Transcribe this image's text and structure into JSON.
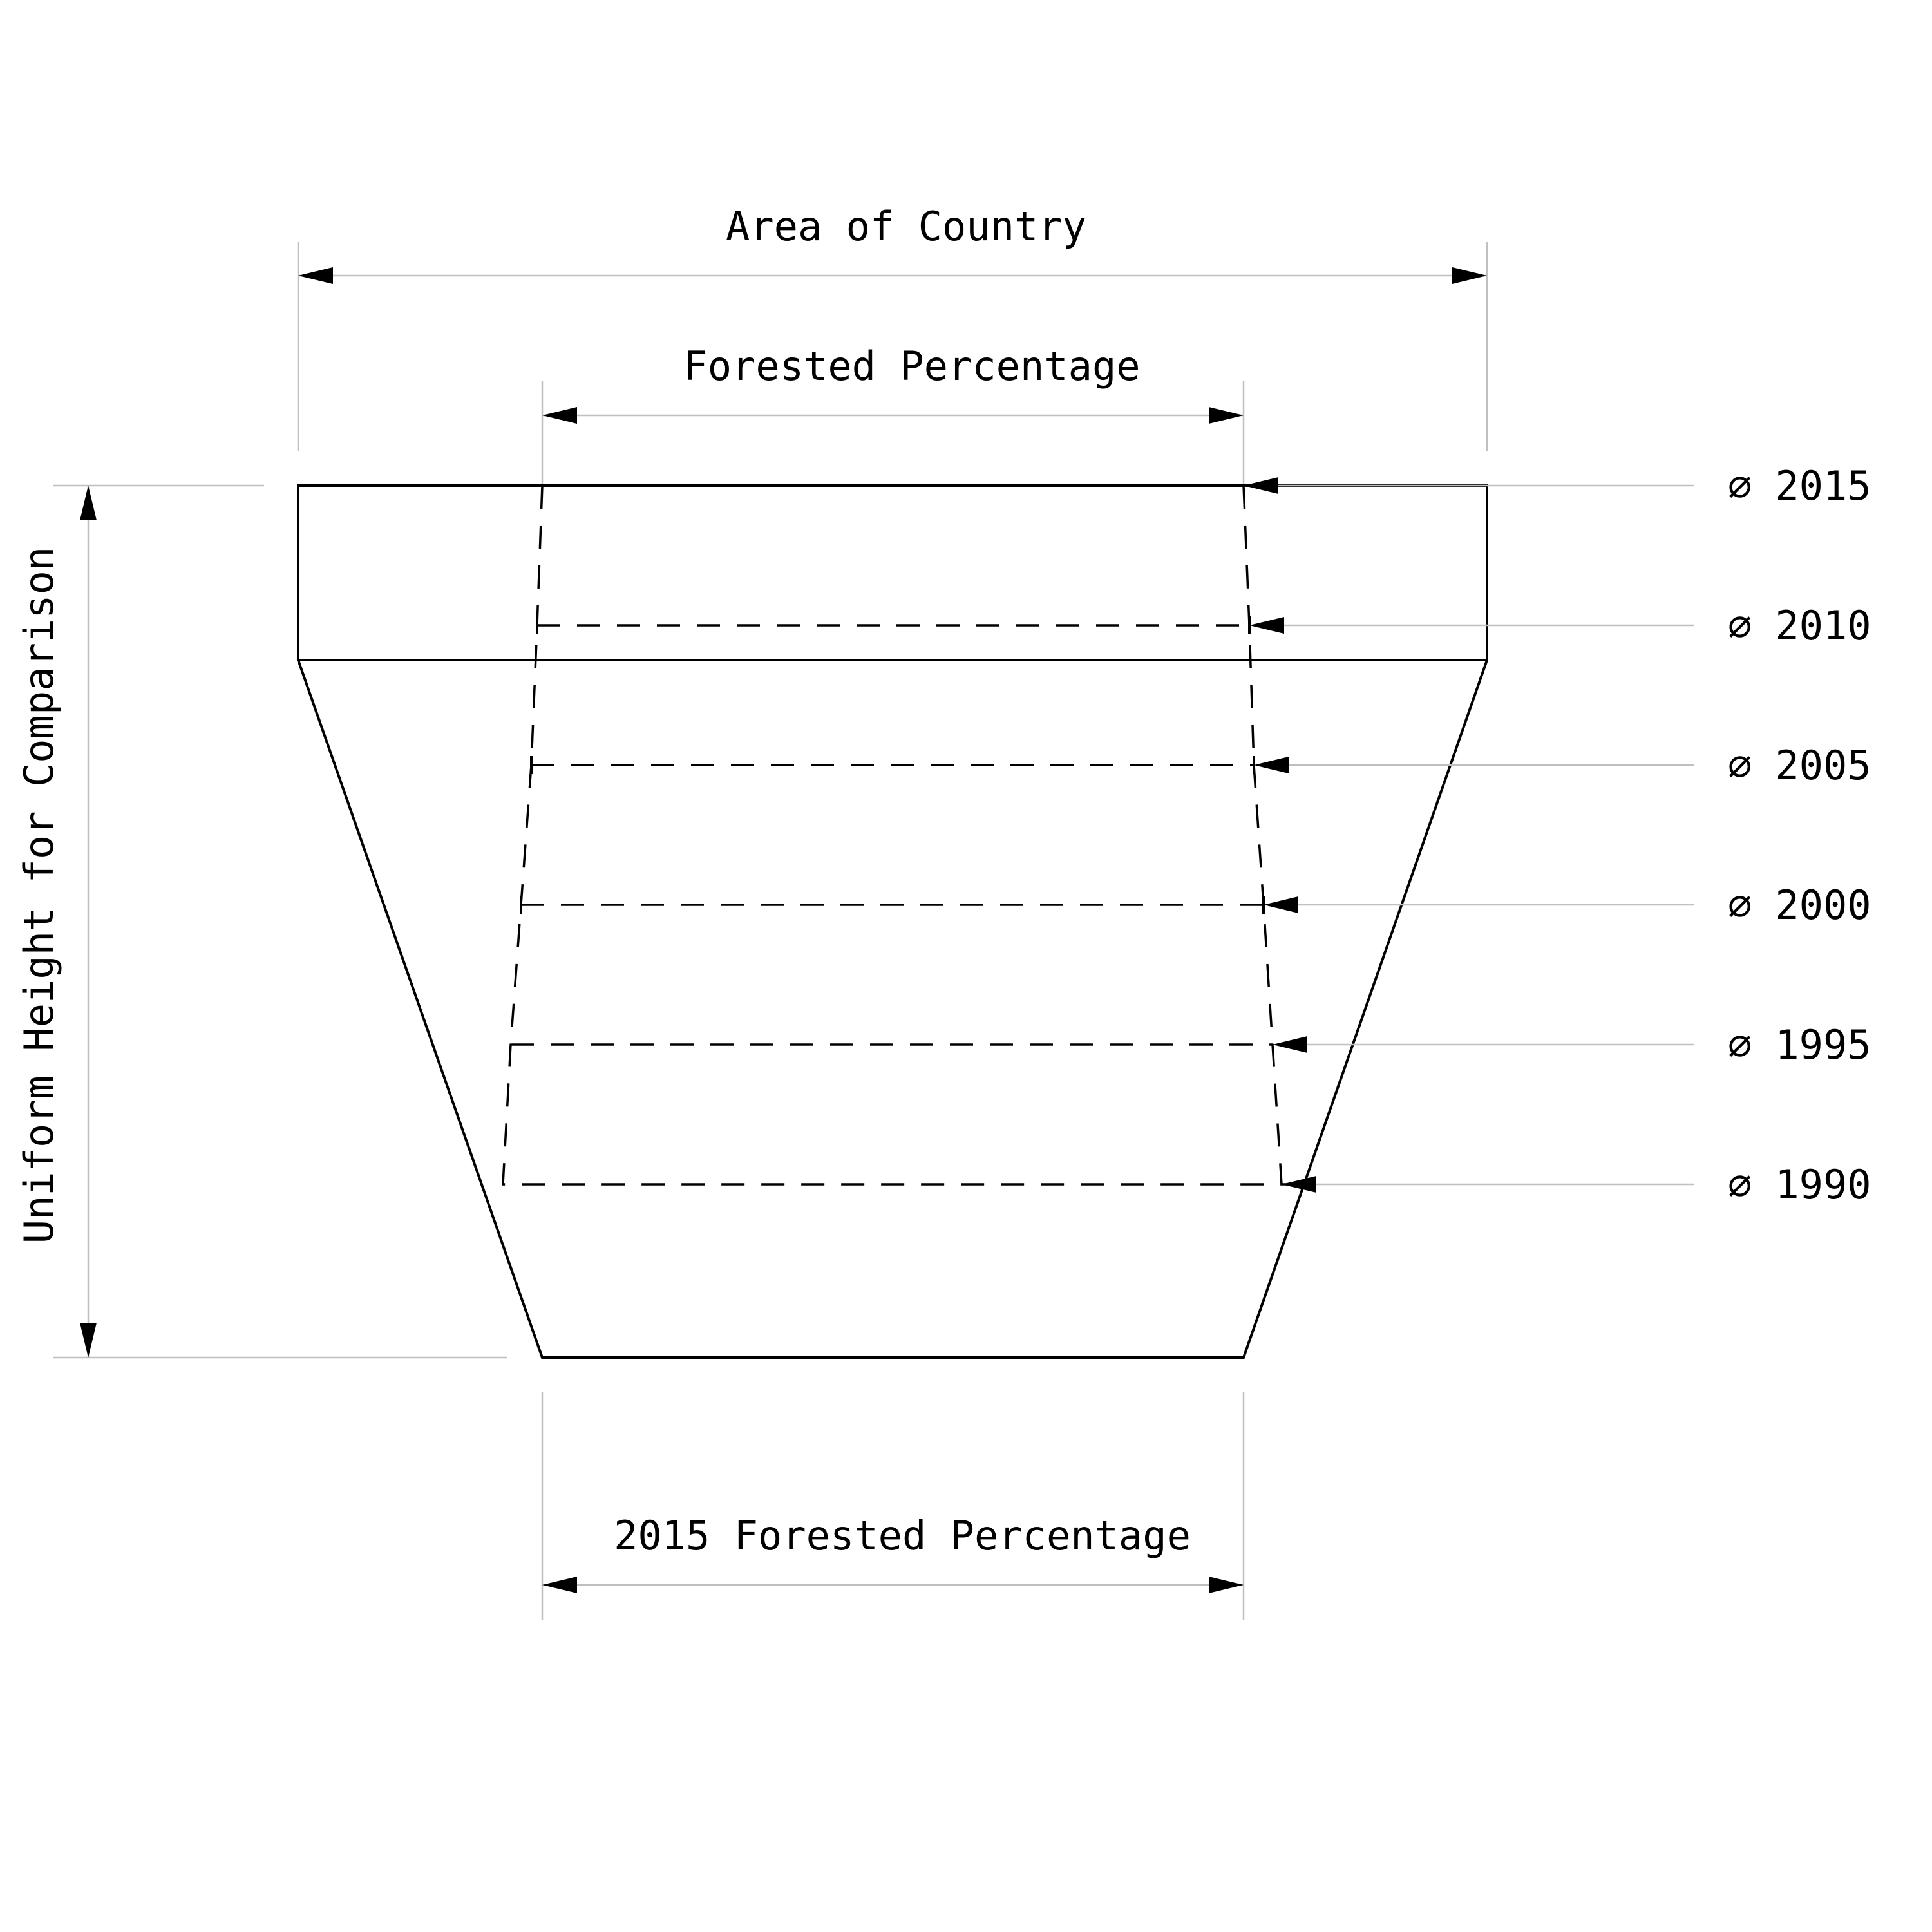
{
  "dimensions": {
    "area_of_country": "Area of Country",
    "forested_percentage": "Forested Percentage",
    "uniform_height": "Uniform Height for Comparison",
    "forested_percentage_2015": "2015 Forested Percentage"
  },
  "year_markers": [
    {
      "symbol": "⌀",
      "year": "2015"
    },
    {
      "symbol": "⌀",
      "year": "2010"
    },
    {
      "symbol": "⌀",
      "year": "2005"
    },
    {
      "symbol": "⌀",
      "year": "2000"
    },
    {
      "symbol": "⌀",
      "year": "1995"
    },
    {
      "symbol": "⌀",
      "year": "1990"
    }
  ],
  "colors": {
    "stroke": "#000000",
    "guide": "#c0c0c0",
    "background": "#ffffff"
  }
}
